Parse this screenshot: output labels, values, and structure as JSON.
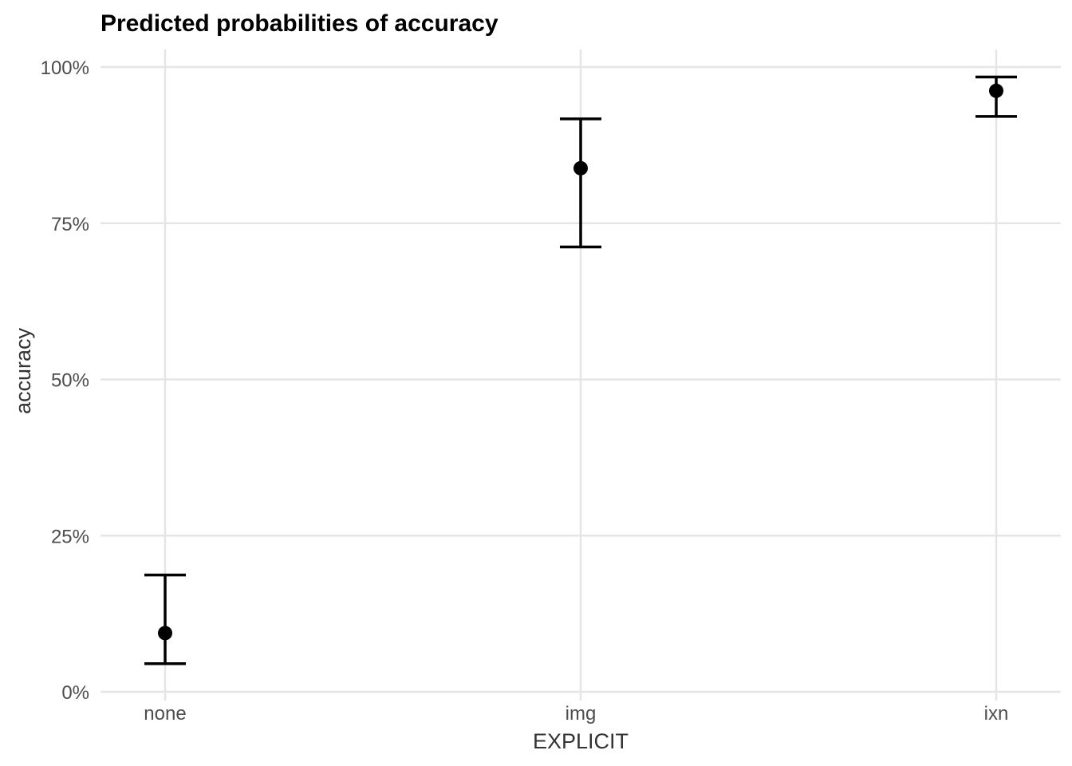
{
  "chart_data": {
    "type": "scatter",
    "title": "Predicted probabilities of accuracy",
    "xlabel": "EXPLICIT",
    "ylabel": "accuracy",
    "categories": [
      "none",
      "img",
      "ixn"
    ],
    "series": [
      {
        "estimate": [
          0.094,
          0.838,
          0.962
        ],
        "lower": [
          0.045,
          0.712,
          0.921
        ],
        "upper": [
          0.187,
          0.917,
          0.984
        ]
      }
    ],
    "ylim": [
      0,
      1
    ],
    "yticks": [
      0,
      0.25,
      0.5,
      0.75,
      1.0
    ],
    "ytick_labels": [
      "0%",
      "25%",
      "50%",
      "75%",
      "100%"
    ],
    "grid": true,
    "legend": "none",
    "colors": {
      "marks": "#000000",
      "grid": "#e5e5e5",
      "background": "#ffffff"
    }
  }
}
